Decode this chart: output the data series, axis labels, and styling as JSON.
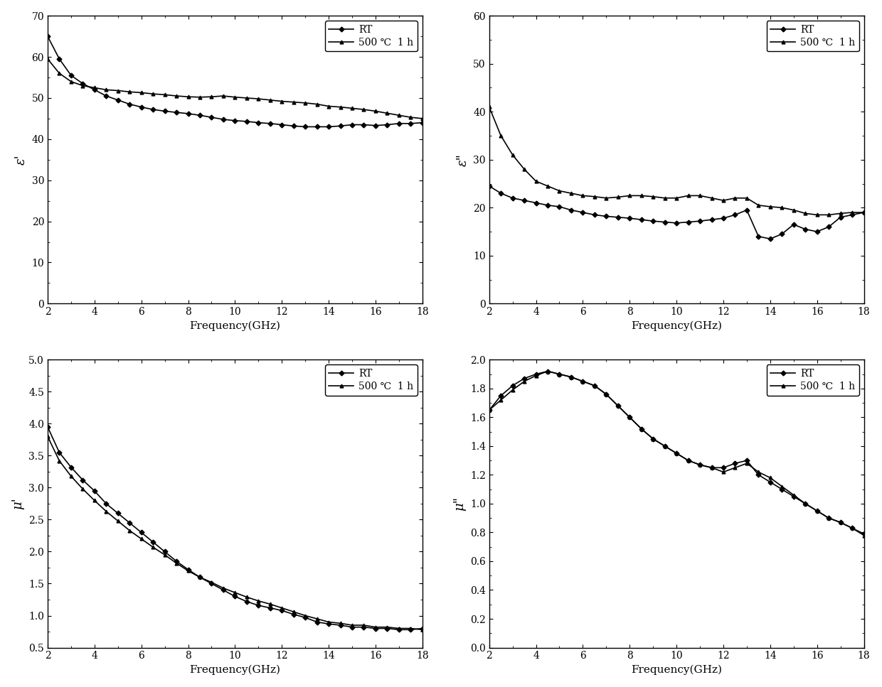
{
  "fig_width": 12.4,
  "fig_height": 9.67,
  "bg_color": "#ffffff",
  "line_color": "#000000",
  "xlabel": "Frequency(GHz)",
  "legend_RT": "RT",
  "legend_500": "500 ℃  1 h",
  "x_ticks": [
    2,
    4,
    6,
    8,
    10,
    12,
    14,
    16,
    18
  ],
  "plots": [
    {
      "ylabel": "ε'",
      "ylim": [
        0,
        70
      ],
      "yticks": [
        0,
        10,
        20,
        30,
        40,
        50,
        60,
        70
      ],
      "legend_loc": "upper right",
      "RT_x": [
        2.0,
        2.5,
        3.0,
        3.5,
        4.0,
        4.5,
        5.0,
        5.5,
        6.0,
        6.5,
        7.0,
        7.5,
        8.0,
        8.5,
        9.0,
        9.5,
        10.0,
        10.5,
        11.0,
        11.5,
        12.0,
        12.5,
        13.0,
        13.5,
        14.0,
        14.5,
        15.0,
        15.5,
        16.0,
        16.5,
        17.0,
        17.5,
        18.0
      ],
      "RT_y": [
        65.0,
        59.5,
        55.5,
        53.5,
        52.0,
        50.5,
        49.5,
        48.5,
        47.8,
        47.2,
        46.8,
        46.5,
        46.2,
        45.8,
        45.3,
        44.8,
        44.5,
        44.3,
        44.0,
        43.8,
        43.5,
        43.2,
        43.0,
        43.0,
        43.0,
        43.2,
        43.5,
        43.5,
        43.3,
        43.5,
        43.8,
        43.8,
        44.0
      ],
      "T500_x": [
        2.0,
        2.5,
        3.0,
        3.5,
        4.0,
        4.5,
        5.0,
        5.5,
        6.0,
        6.5,
        7.0,
        7.5,
        8.0,
        8.5,
        9.0,
        9.5,
        10.0,
        10.5,
        11.0,
        11.5,
        12.0,
        12.5,
        13.0,
        13.5,
        14.0,
        14.5,
        15.0,
        15.5,
        16.0,
        16.5,
        17.0,
        17.5,
        18.0
      ],
      "T500_y": [
        59.5,
        56.0,
        54.0,
        53.0,
        52.5,
        52.0,
        51.8,
        51.5,
        51.3,
        51.0,
        50.8,
        50.5,
        50.3,
        50.2,
        50.3,
        50.5,
        50.2,
        50.0,
        49.8,
        49.5,
        49.2,
        49.0,
        48.8,
        48.5,
        48.0,
        47.8,
        47.5,
        47.2,
        46.8,
        46.3,
        45.8,
        45.3,
        45.0
      ]
    },
    {
      "ylabel": "ε\"",
      "ylim": [
        0,
        60
      ],
      "yticks": [
        0,
        10,
        20,
        30,
        40,
        50,
        60
      ],
      "legend_loc": "upper right",
      "RT_x": [
        2.0,
        2.5,
        3.0,
        3.5,
        4.0,
        4.5,
        5.0,
        5.5,
        6.0,
        6.5,
        7.0,
        7.5,
        8.0,
        8.5,
        9.0,
        9.5,
        10.0,
        10.5,
        11.0,
        11.5,
        12.0,
        12.5,
        13.0,
        13.5,
        14.0,
        14.5,
        15.0,
        15.5,
        16.0,
        16.5,
        17.0,
        17.5,
        18.0
      ],
      "RT_y": [
        24.5,
        23.0,
        22.0,
        21.5,
        21.0,
        20.5,
        20.2,
        19.5,
        19.0,
        18.5,
        18.2,
        18.0,
        17.8,
        17.5,
        17.2,
        17.0,
        16.8,
        17.0,
        17.2,
        17.5,
        17.8,
        18.5,
        19.5,
        14.0,
        13.5,
        14.5,
        16.5,
        15.5,
        15.0,
        16.0,
        18.0,
        18.5,
        19.0
      ],
      "T500_x": [
        2.0,
        2.5,
        3.0,
        3.5,
        4.0,
        4.5,
        5.0,
        5.5,
        6.0,
        6.5,
        7.0,
        7.5,
        8.0,
        8.5,
        9.0,
        9.5,
        10.0,
        10.5,
        11.0,
        11.5,
        12.0,
        12.5,
        13.0,
        13.5,
        14.0,
        14.5,
        15.0,
        15.5,
        16.0,
        16.5,
        17.0,
        17.5,
        18.0
      ],
      "T500_y": [
        41.0,
        35.0,
        31.0,
        28.0,
        25.5,
        24.5,
        23.5,
        23.0,
        22.5,
        22.3,
        22.0,
        22.2,
        22.5,
        22.5,
        22.3,
        22.0,
        22.0,
        22.5,
        22.5,
        22.0,
        21.5,
        22.0,
        22.0,
        20.5,
        20.2,
        20.0,
        19.5,
        18.8,
        18.5,
        18.5,
        18.8,
        19.0,
        19.0
      ]
    },
    {
      "ylabel": "μ'",
      "ylim": [
        0.5,
        5.0
      ],
      "yticks": [
        0.5,
        1.0,
        1.5,
        2.0,
        2.5,
        3.0,
        3.5,
        4.0,
        4.5,
        5.0
      ],
      "legend_loc": "upper right",
      "RT_x": [
        2.0,
        2.5,
        3.0,
        3.5,
        4.0,
        4.5,
        5.0,
        5.5,
        6.0,
        6.5,
        7.0,
        7.5,
        8.0,
        8.5,
        9.0,
        9.5,
        10.0,
        10.5,
        11.0,
        11.5,
        12.0,
        12.5,
        13.0,
        13.5,
        14.0,
        14.5,
        15.0,
        15.5,
        16.0,
        16.5,
        17.0,
        17.5,
        18.0
      ],
      "RT_y": [
        3.95,
        3.55,
        3.32,
        3.12,
        2.95,
        2.75,
        2.6,
        2.45,
        2.3,
        2.15,
        2.0,
        1.85,
        1.72,
        1.6,
        1.5,
        1.4,
        1.3,
        1.22,
        1.16,
        1.12,
        1.08,
        1.02,
        0.97,
        0.9,
        0.87,
        0.85,
        0.82,
        0.82,
        0.8,
        0.8,
        0.78,
        0.78,
        0.8
      ],
      "T500_x": [
        2.0,
        2.5,
        3.0,
        3.5,
        4.0,
        4.5,
        5.0,
        5.5,
        6.0,
        6.5,
        7.0,
        7.5,
        8.0,
        8.5,
        9.0,
        9.5,
        10.0,
        10.5,
        11.0,
        11.5,
        12.0,
        12.5,
        13.0,
        13.5,
        14.0,
        14.5,
        15.0,
        15.5,
        16.0,
        16.5,
        17.0,
        17.5,
        18.0
      ],
      "T500_y": [
        3.8,
        3.42,
        3.18,
        2.98,
        2.8,
        2.63,
        2.48,
        2.33,
        2.2,
        2.07,
        1.95,
        1.82,
        1.7,
        1.6,
        1.52,
        1.43,
        1.36,
        1.29,
        1.23,
        1.18,
        1.12,
        1.06,
        1.0,
        0.95,
        0.9,
        0.88,
        0.85,
        0.85,
        0.82,
        0.82,
        0.8,
        0.8,
        0.78
      ]
    },
    {
      "ylabel": "μ\"",
      "ylim": [
        0.0,
        2.0
      ],
      "yticks": [
        0.0,
        0.2,
        0.4,
        0.6,
        0.8,
        1.0,
        1.2,
        1.4,
        1.6,
        1.8,
        2.0
      ],
      "legend_loc": "upper right",
      "RT_x": [
        2.0,
        2.5,
        3.0,
        3.5,
        4.0,
        4.5,
        5.0,
        5.5,
        6.0,
        6.5,
        7.0,
        7.5,
        8.0,
        8.5,
        9.0,
        9.5,
        10.0,
        10.5,
        11.0,
        11.5,
        12.0,
        12.5,
        13.0,
        13.5,
        14.0,
        14.5,
        15.0,
        15.5,
        16.0,
        16.5,
        17.0,
        17.5,
        18.0
      ],
      "RT_y": [
        1.65,
        1.75,
        1.82,
        1.87,
        1.9,
        1.92,
        1.9,
        1.88,
        1.85,
        1.82,
        1.76,
        1.68,
        1.6,
        1.52,
        1.45,
        1.4,
        1.35,
        1.3,
        1.27,
        1.25,
        1.25,
        1.28,
        1.3,
        1.2,
        1.15,
        1.1,
        1.05,
        1.0,
        0.95,
        0.9,
        0.87,
        0.83,
        0.79
      ],
      "T500_x": [
        2.0,
        2.5,
        3.0,
        3.5,
        4.0,
        4.5,
        5.0,
        5.5,
        6.0,
        6.5,
        7.0,
        7.5,
        8.0,
        8.5,
        9.0,
        9.5,
        10.0,
        10.5,
        11.0,
        11.5,
        12.0,
        12.5,
        13.0,
        13.5,
        14.0,
        14.5,
        15.0,
        15.5,
        16.0,
        16.5,
        17.0,
        17.5,
        18.0
      ],
      "T500_y": [
        1.65,
        1.72,
        1.79,
        1.85,
        1.89,
        1.92,
        1.9,
        1.88,
        1.85,
        1.82,
        1.76,
        1.68,
        1.6,
        1.52,
        1.45,
        1.4,
        1.35,
        1.3,
        1.27,
        1.25,
        1.22,
        1.25,
        1.28,
        1.22,
        1.18,
        1.12,
        1.06,
        1.0,
        0.95,
        0.9,
        0.87,
        0.83,
        0.78
      ]
    }
  ]
}
